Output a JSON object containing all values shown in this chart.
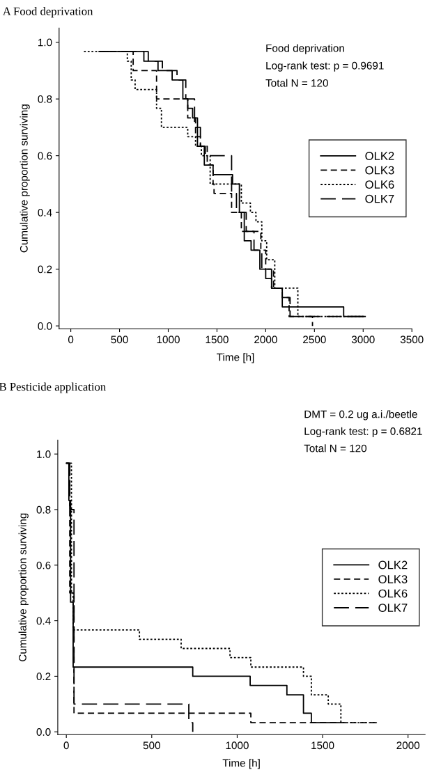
{
  "chart_data": [
    {
      "type": "step",
      "title": "A Food deprivation",
      "xlabel": "Time [h]",
      "ylabel": "Cumulative proportion surviving",
      "annotations": [
        "Food deprivation",
        "Log-rank test: p = 0.9691",
        "Total N = 120"
      ],
      "xlim": [
        -120,
        3500
      ],
      "xticks": [
        0,
        500,
        1000,
        1500,
        2000,
        2500,
        3000,
        3500
      ],
      "ylim": [
        -0.01,
        1.05
      ],
      "yticks": [
        {
          "value": 0,
          "label": "0.0"
        },
        {
          "value": 0.2,
          "label": "0.2"
        },
        {
          "value": 0.4,
          "label": "0.4"
        },
        {
          "value": 0.6,
          "label": "0.6"
        },
        {
          "value": 0.8,
          "label": "0.8"
        },
        {
          "value": 1,
          "label": "1.0"
        }
      ],
      "grid": false,
      "legend": "right",
      "marker": "none",
      "series": [
        {
          "name": "OLK2",
          "color": "#000000",
          "line_style": "solid",
          "x": [
            290,
            795,
            895,
            1040,
            1150,
            1200,
            1250,
            1300,
            1370,
            1460,
            1660,
            1730,
            1780,
            1850,
            1940,
            2000,
            2060,
            2170,
            2800,
            3020
          ],
          "values": [
            0.967,
            0.933,
            0.9,
            0.867,
            0.8,
            0.767,
            0.733,
            0.633,
            0.567,
            0.533,
            0.5,
            0.4,
            0.3,
            0.267,
            0.2,
            0.167,
            0.133,
            0.067,
            0.033,
            0.033
          ]
        },
        {
          "name": "OLK3",
          "color": "#000000",
          "line_style": "dashed",
          "x": [
            300,
            640,
            880,
            1200,
            1280,
            1330,
            1400,
            1460,
            1470,
            1650,
            1750,
            1950,
            2000,
            2080,
            2170,
            2240,
            2480
          ],
          "values": [
            0.967,
            0.9,
            0.8,
            0.733,
            0.667,
            0.633,
            0.567,
            0.5,
            0.467,
            0.4,
            0.333,
            0.267,
            0.2,
            0.133,
            0.1,
            0.033,
            0.0
          ]
        },
        {
          "name": "OLK6",
          "color": "#000000",
          "line_style": "dotted",
          "x": [
            135,
            580,
            620,
            660,
            880,
            930,
            1200,
            1280,
            1340,
            1430,
            1750,
            1843,
            1900,
            1960,
            2010,
            2093,
            2330,
            3030
          ],
          "values": [
            0.967,
            0.933,
            0.867,
            0.833,
            0.767,
            0.7,
            0.667,
            0.633,
            0.6,
            0.5,
            0.433,
            0.4,
            0.367,
            0.3,
            0.233,
            0.133,
            0.033,
            0.033
          ]
        },
        {
          "name": "OLK7",
          "color": "#000000",
          "line_style": "long dashed",
          "x": [
            300,
            750,
            940,
            1090,
            1180,
            1270,
            1330,
            1380,
            1650,
            1700,
            1800,
            1880,
            1960,
            2060,
            2170,
            2250,
            3030
          ],
          "values": [
            0.967,
            0.933,
            0.9,
            0.867,
            0.8,
            0.7,
            0.633,
            0.6,
            0.467,
            0.4,
            0.333,
            0.267,
            0.2,
            0.133,
            0.1,
            0.033,
            0.033
          ]
        }
      ]
    },
    {
      "type": "step",
      "title": "B Pesticide application",
      "xlabel": "Time [h]",
      "ylabel": "Cumulative proportion surviving",
      "annotations": [
        "DMT = 0.2 ug a.i./beetle",
        "Log-rank test: p = 0.6821",
        "Total N = 120"
      ],
      "xlim": [
        -50,
        2100
      ],
      "xticks": [
        0,
        500,
        1000,
        1500,
        2000
      ],
      "ylim": [
        -0.01,
        1.05
      ],
      "yticks": [
        {
          "value": 0,
          "label": "0.0"
        },
        {
          "value": 0.2,
          "label": "0.2"
        },
        {
          "value": 0.4,
          "label": "0.4"
        },
        {
          "value": 0.6,
          "label": "0.6"
        },
        {
          "value": 0.8,
          "label": "0.8"
        },
        {
          "value": 1,
          "label": "1.0"
        }
      ],
      "grid": false,
      "legend": "right",
      "marker": "none",
      "series": [
        {
          "name": "OLK2",
          "color": "#000000",
          "line_style": "solid",
          "x": [
            0,
            15,
            25,
            40,
            740,
            1076,
            1291,
            1388,
            1434,
            1607
          ],
          "values": [
            0.967,
            0.833,
            0.467,
            0.233,
            0.2,
            0.167,
            0.133,
            0.067,
            0.033,
            0.033
          ]
        },
        {
          "name": "OLK3",
          "color": "#000000",
          "line_style": "dashed",
          "x": [
            0,
            20,
            45,
            1080,
            1818
          ],
          "values": [
            0.967,
            0.5,
            0.067,
            0.033,
            0.033
          ]
        },
        {
          "name": "OLK6",
          "color": "#000000",
          "line_style": "dotted",
          "x": [
            0,
            30,
            40,
            428,
            672,
            958,
            1080,
            1388,
            1434,
            1533,
            1607,
            1818
          ],
          "values": [
            0.967,
            0.5,
            0.367,
            0.333,
            0.3,
            0.267,
            0.233,
            0.2,
            0.133,
            0.1,
            0.033,
            0.033
          ]
        },
        {
          "name": "OLK7",
          "color": "#000000",
          "line_style": "long dashed",
          "x": [
            0,
            20,
            45,
            717,
            740
          ],
          "values": [
            0.967,
            0.8,
            0.1,
            0.033,
            0.0
          ]
        }
      ]
    }
  ]
}
